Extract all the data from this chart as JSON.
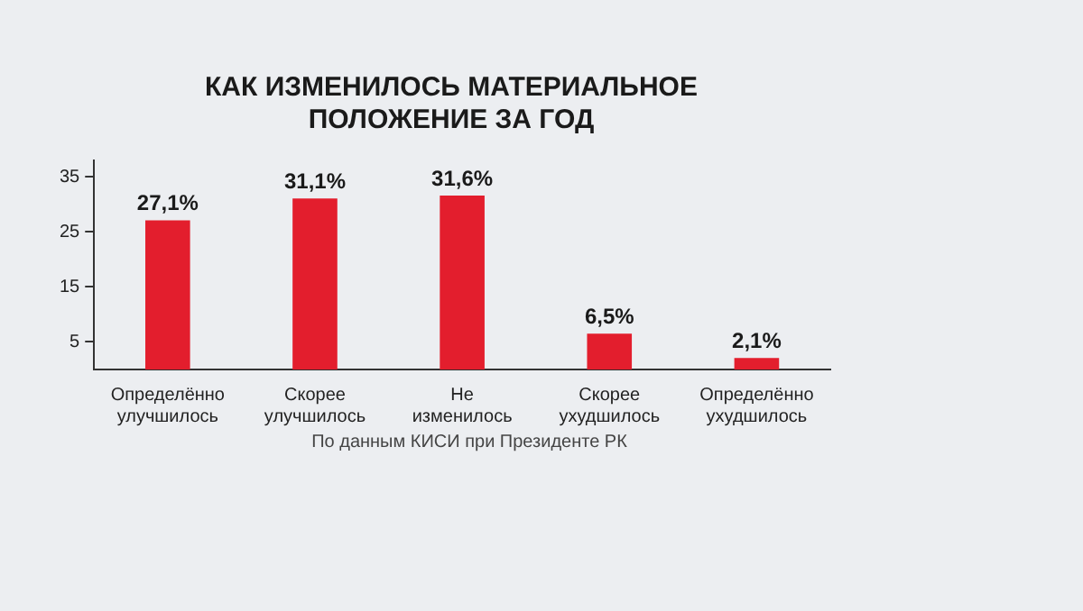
{
  "chart_data": {
    "type": "bar",
    "title": "КАК ИЗМЕНИЛОСЬ МАТЕРИАЛЬНОЕ ПОЛОЖЕНИЕ ЗА ГОД",
    "categories": [
      "Определённо улучшилось",
      "Скорее улучшилось",
      "Не изменилось",
      "Скорее ухудшилось",
      "Определённо ухудшилось"
    ],
    "values": [
      27.1,
      31.1,
      31.6,
      6.5,
      2.1
    ],
    "value_labels": [
      "27,1%",
      "31,1%",
      "31,6%",
      "6,5%",
      "2,1%"
    ],
    "color": "#e31e2d",
    "ylim": [
      0,
      38
    ],
    "yticks": [
      5,
      15,
      25,
      35
    ],
    "grid": false,
    "legend": false,
    "annotations": [
      "По данным КИСИ при Президенте РК"
    ]
  }
}
